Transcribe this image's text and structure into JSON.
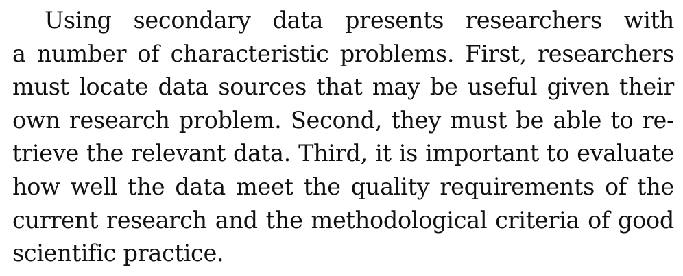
{
  "paragraph": {
    "lines": [
      "Using secondary data presents researchers with",
      "a number of characteristic problems. First, researchers",
      "must locate data sources that may be useful given their",
      "own research problem. Second, they must be able to re-",
      "trieve the relevant data. Third, it is important to evaluate",
      "how well the data meet the quality requirements of the",
      "current research and the methodological criteria of good",
      "scientific practice."
    ]
  }
}
